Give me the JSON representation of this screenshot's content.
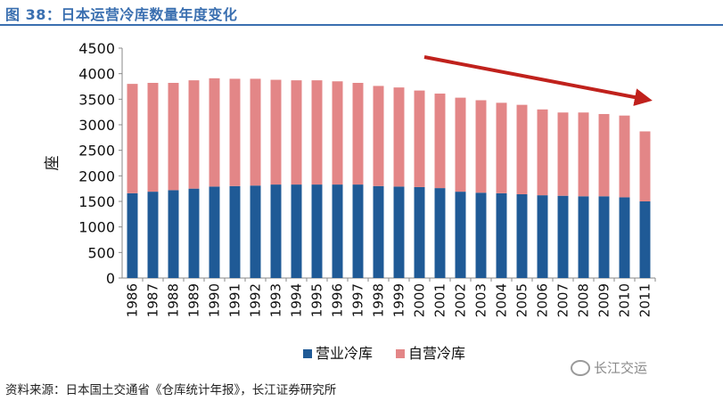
{
  "figure_title": "图 38：日本运营冷库数量年度变化",
  "source_note": "资料来源：日本国土交通省《仓库统计年报》，长江证券研究所",
  "watermark": "长江交运",
  "colors": {
    "business": "#1f5a96",
    "self": "#e38687",
    "arrow": "#c0211c",
    "title": "#3a6fb0"
  },
  "chart_data": {
    "type": "bar",
    "stacked": true,
    "title": "",
    "xlabel": "",
    "ylabel": "座",
    "ylim": [
      0,
      4500
    ],
    "yticks": [
      0,
      500,
      1000,
      1500,
      2000,
      2500,
      3000,
      3500,
      4000,
      4500
    ],
    "categories": [
      "1986",
      "1987",
      "1988",
      "1989",
      "1990",
      "1991",
      "1992",
      "1993",
      "1994",
      "1995",
      "1996",
      "1997",
      "1998",
      "1999",
      "2000",
      "2001",
      "2002",
      "2003",
      "2004",
      "2005",
      "2006",
      "2007",
      "2008",
      "2009",
      "2010",
      "2011"
    ],
    "series": [
      {
        "name": "营业冷库",
        "values": [
          1660,
          1690,
          1720,
          1750,
          1790,
          1800,
          1810,
          1830,
          1830,
          1830,
          1830,
          1830,
          1800,
          1790,
          1780,
          1760,
          1690,
          1670,
          1660,
          1640,
          1620,
          1610,
          1600,
          1600,
          1580,
          1500
        ]
      },
      {
        "name": "自营冷库",
        "values": [
          2140,
          2130,
          2100,
          2120,
          2120,
          2100,
          2090,
          2050,
          2040,
          2040,
          2020,
          1990,
          1960,
          1940,
          1890,
          1850,
          1840,
          1810,
          1770,
          1750,
          1680,
          1630,
          1640,
          1610,
          1600,
          1370
        ]
      }
    ],
    "legend_position": "bottom",
    "grid": false,
    "annotation": "downward trend arrow"
  }
}
